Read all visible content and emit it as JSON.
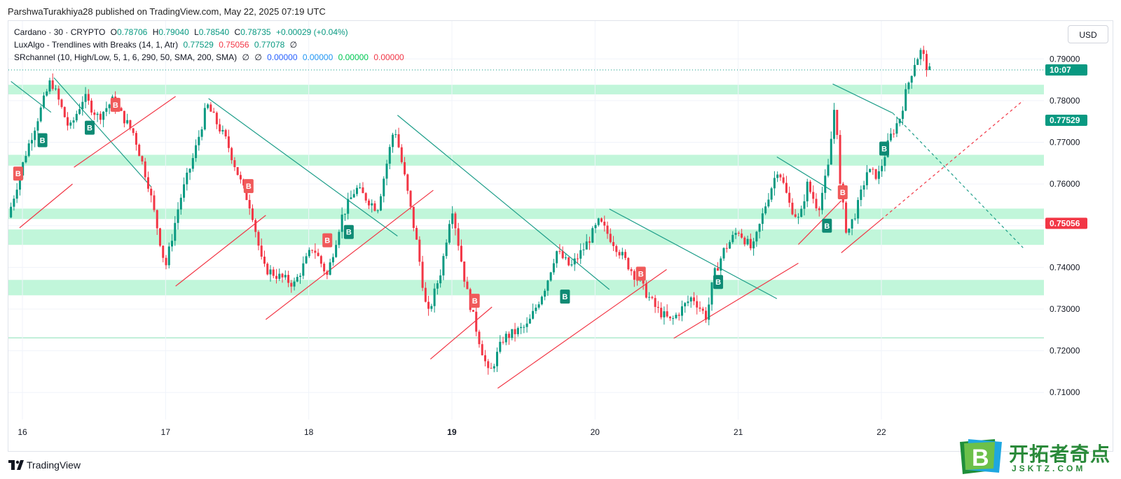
{
  "publisher": "ParshwaTurakhiya28 published on TradingView.com, May 22, 2025 07:19 UTC",
  "legend": {
    "symbol": "Cardano · 30 · CRYPTO",
    "o_label": "O",
    "o": "0.78706",
    "h_label": "H",
    "h": "0.79040",
    "l_label": "L",
    "l": "0.78540",
    "c_label": "C",
    "c": "0.78735",
    "change": "+0.00029 (+0.04%)",
    "lux": "LuxAlgo - Trendlines with Breaks (14, 1, Atr)",
    "lux_v1": "0.77529",
    "lux_v2": "0.75056",
    "lux_v3": "0.77078",
    "lux_v4": "∅",
    "sr": "SRchannel (10, High/Low, 5, 1, 6, 290, 50, SMA, 200, SMA)",
    "sr_v1": "∅",
    "sr_v2": "∅",
    "sr_v3": "0.00000",
    "sr_v4": "0.00000",
    "sr_v5": "0.00000",
    "sr_v6": "0.00000"
  },
  "currency_button": "USD",
  "footer_brand": "TradingView",
  "watermark": {
    "letter": "B",
    "text": "开拓者奇点",
    "sub": "JSKTZ.COM"
  },
  "colors": {
    "up": "#089981",
    "down": "#f23645",
    "zone": "#b6f5d4",
    "trend_down": "#1e9e8a",
    "trend_up": "#f23645"
  },
  "chart_data": {
    "type": "candlestick",
    "title": "Cardano · 30 · CRYPTO",
    "ylim": [
      0.7035,
      0.7991
    ],
    "y_ticks": [
      "0.79000",
      "0.78000",
      "0.77000",
      "0.76000",
      "0.75000",
      "0.74000",
      "0.73000",
      "0.72000",
      "0.71000"
    ],
    "x_ticks": [
      "16",
      "17",
      "18",
      "19",
      "20",
      "21",
      "22"
    ],
    "x_range": [
      15.92,
      22.99
    ],
    "price_labels": [
      {
        "text": "10:07",
        "value": 0.78735,
        "color": "#089981"
      },
      {
        "text": "0.77529",
        "value": 0.77529,
        "color": "#089981"
      },
      {
        "text": "0.75056",
        "value": 0.75056,
        "color": "#f23645"
      }
    ],
    "sr_zones": [
      [
        0.7815,
        0.7838
      ],
      [
        0.7644,
        0.767
      ],
      [
        0.7516,
        0.7541
      ],
      [
        0.7454,
        0.7491
      ],
      [
        0.7333,
        0.737
      ]
    ],
    "sr_lines": [
      0.7231
    ],
    "close_path": [
      [
        15.92,
        0.752
      ],
      [
        16.05,
        0.768
      ],
      [
        16.12,
        0.775
      ],
      [
        16.22,
        0.785
      ],
      [
        16.35,
        0.773
      ],
      [
        16.45,
        0.781
      ],
      [
        16.55,
        0.776
      ],
      [
        16.65,
        0.78
      ],
      [
        16.8,
        0.772
      ],
      [
        16.9,
        0.76
      ],
      [
        17.02,
        0.74
      ],
      [
        17.12,
        0.756
      ],
      [
        17.22,
        0.767
      ],
      [
        17.31,
        0.779
      ],
      [
        17.45,
        0.77
      ],
      [
        17.55,
        0.76
      ],
      [
        17.62,
        0.754
      ],
      [
        17.7,
        0.74
      ],
      [
        17.8,
        0.738
      ],
      [
        17.92,
        0.736
      ],
      [
        18.05,
        0.745
      ],
      [
        18.15,
        0.738
      ],
      [
        18.25,
        0.752
      ],
      [
        18.35,
        0.759
      ],
      [
        18.5,
        0.754
      ],
      [
        18.62,
        0.774
      ],
      [
        18.7,
        0.76
      ],
      [
        18.78,
        0.745
      ],
      [
        18.85,
        0.728
      ],
      [
        18.95,
        0.74
      ],
      [
        19.02,
        0.755
      ],
      [
        19.12,
        0.735
      ],
      [
        19.2,
        0.724
      ],
      [
        19.28,
        0.714
      ],
      [
        19.38,
        0.723
      ],
      [
        19.55,
        0.726
      ],
      [
        19.68,
        0.736
      ],
      [
        19.75,
        0.744
      ],
      [
        19.85,
        0.74
      ],
      [
        19.95,
        0.745
      ],
      [
        20.05,
        0.751
      ],
      [
        20.15,
        0.746
      ],
      [
        20.3,
        0.738
      ],
      [
        20.45,
        0.73
      ],
      [
        20.55,
        0.727
      ],
      [
        20.7,
        0.733
      ],
      [
        20.8,
        0.728
      ],
      [
        20.85,
        0.738
      ],
      [
        20.92,
        0.744
      ],
      [
        21.02,
        0.749
      ],
      [
        21.12,
        0.744
      ],
      [
        21.22,
        0.756
      ],
      [
        21.3,
        0.764
      ],
      [
        21.38,
        0.755
      ],
      [
        21.45,
        0.751
      ],
      [
        21.5,
        0.76
      ],
      [
        21.58,
        0.754
      ],
      [
        21.65,
        0.764
      ],
      [
        21.7,
        0.781
      ],
      [
        21.73,
        0.76
      ],
      [
        21.78,
        0.748
      ],
      [
        21.85,
        0.754
      ],
      [
        21.92,
        0.763
      ],
      [
        22.0,
        0.762
      ],
      [
        22.08,
        0.771
      ],
      [
        22.15,
        0.776
      ],
      [
        22.2,
        0.783
      ],
      [
        22.25,
        0.789
      ],
      [
        22.3,
        0.792
      ],
      [
        22.35,
        0.787
      ]
    ],
    "trendlines_down": [
      [
        [
          15.92,
          0.7846
        ],
        [
          16.2,
          0.7772
        ]
      ],
      [
        [
          16.22,
          0.7855
        ],
        [
          16.9,
          0.7593
        ]
      ],
      [
        [
          17.3,
          0.7805
        ],
        [
          18.62,
          0.7475
        ]
      ],
      [
        [
          18.62,
          0.7765
        ],
        [
          20.1,
          0.7347
        ]
      ],
      [
        [
          20.1,
          0.754
        ],
        [
          21.27,
          0.7325
        ]
      ],
      [
        [
          21.27,
          0.7665
        ],
        [
          21.65,
          0.7585
        ]
      ],
      [
        [
          21.66,
          0.784
        ],
        [
          22.08,
          0.777
        ]
      ]
    ],
    "trendlines_down_dashed": [
      [
        [
          22.08,
          0.777
        ],
        [
          22.99,
          0.7447
        ]
      ]
    ],
    "trendlines_up": [
      [
        [
          15.98,
          0.7495
        ],
        [
          16.35,
          0.76
        ]
      ],
      [
        [
          16.36,
          0.764
        ],
        [
          17.07,
          0.781
        ]
      ],
      [
        [
          17.07,
          0.7355
        ],
        [
          17.7,
          0.7525
        ]
      ],
      [
        [
          17.7,
          0.7275
        ],
        [
          18.87,
          0.7585
        ]
      ],
      [
        [
          18.85,
          0.718
        ],
        [
          19.28,
          0.7305
        ]
      ],
      [
        [
          19.32,
          0.711
        ],
        [
          20.5,
          0.7395
        ]
      ],
      [
        [
          20.55,
          0.723
        ],
        [
          21.42,
          0.741
        ]
      ],
      [
        [
          21.42,
          0.7455
        ],
        [
          21.72,
          0.756
        ]
      ],
      [
        [
          21.72,
          0.7435
        ],
        [
          22.0,
          0.7515
        ]
      ]
    ],
    "trendlines_up_dashed": [
      [
        [
          22.0,
          0.7515
        ],
        [
          22.99,
          0.78
        ]
      ]
    ],
    "markers": [
      {
        "label": "B",
        "x": 15.97,
        "y": 0.7625,
        "kind": "sell"
      },
      {
        "label": "B",
        "x": 16.14,
        "y": 0.7705,
        "kind": "buy"
      },
      {
        "label": "B",
        "x": 16.47,
        "y": 0.7735,
        "kind": "buy"
      },
      {
        "label": "B",
        "x": 16.65,
        "y": 0.779,
        "kind": "sell"
      },
      {
        "label": "B",
        "x": 17.58,
        "y": 0.7595,
        "kind": "sell"
      },
      {
        "label": "B",
        "x": 18.13,
        "y": 0.7465,
        "kind": "sell"
      },
      {
        "label": "B",
        "x": 18.28,
        "y": 0.7485,
        "kind": "buy"
      },
      {
        "label": "B",
        "x": 19.16,
        "y": 0.732,
        "kind": "sell"
      },
      {
        "label": "B",
        "x": 19.79,
        "y": 0.733,
        "kind": "buy"
      },
      {
        "label": "B",
        "x": 20.32,
        "y": 0.7385,
        "kind": "sell"
      },
      {
        "label": "B",
        "x": 20.86,
        "y": 0.7365,
        "kind": "buy"
      },
      {
        "label": "B",
        "x": 21.62,
        "y": 0.75,
        "kind": "buy"
      },
      {
        "label": "B",
        "x": 21.73,
        "y": 0.758,
        "kind": "sell"
      },
      {
        "label": "B",
        "x": 22.02,
        "y": 0.7685,
        "kind": "buy"
      }
    ]
  }
}
